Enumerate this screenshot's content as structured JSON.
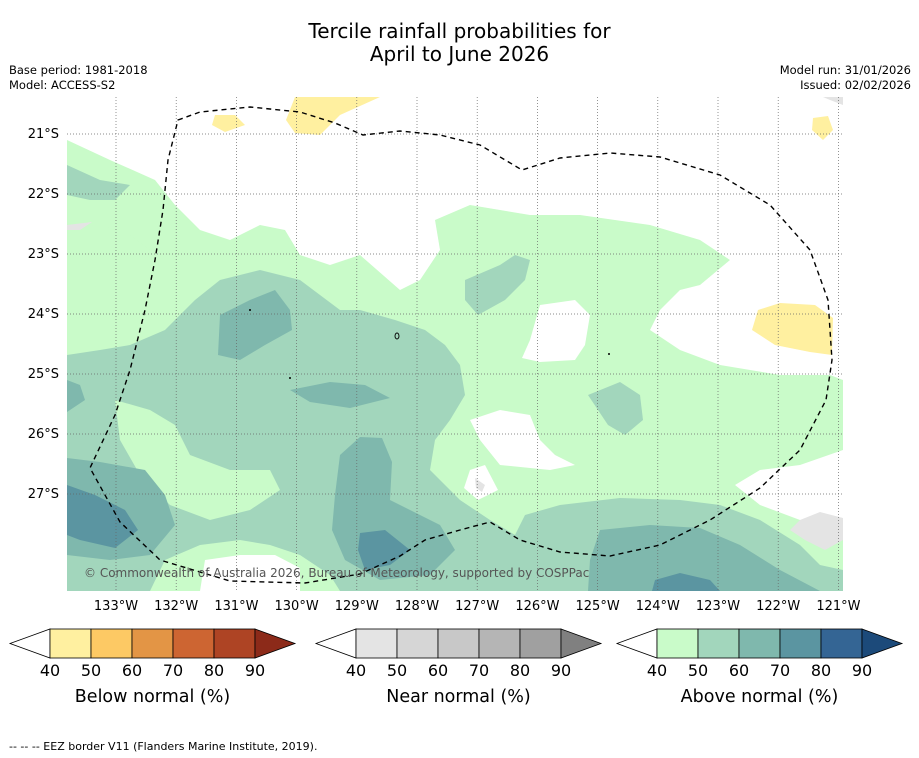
{
  "title_line1": "Tercile rainfall probabilities for",
  "title_line2": "April to June 2026",
  "meta_left": {
    "base_period": "Base period: 1981-2018",
    "model": "Model: ACCESS-S2"
  },
  "meta_right": {
    "model_run": "Model run: 31/01/2026",
    "issued": "Issued: 02/02/2026"
  },
  "map": {
    "lat_labels": [
      "21°S",
      "22°S",
      "23°S",
      "24°S",
      "25°S",
      "26°S",
      "27°S"
    ],
    "lon_labels": [
      "133°W",
      "132°W",
      "131°W",
      "130°W",
      "129°W",
      "128°W",
      "127°W",
      "126°W",
      "125°W",
      "124°W",
      "123°W",
      "122°W",
      "121°W"
    ],
    "watermark": "© Commonwealth of Australia 2026, Bureau of Meteorology, supported by COSPPac"
  },
  "colorbars": [
    {
      "title": "Below normal (%)",
      "ticks": [
        "40",
        "50",
        "60",
        "70",
        "80",
        "90"
      ],
      "colors": [
        "#ffffff",
        "#fff0a0",
        "#fdc964",
        "#e39545",
        "#cd6532",
        "#ae4424",
        "#8c2a19"
      ]
    },
    {
      "title": "Near normal (%)",
      "ticks": [
        "40",
        "50",
        "60",
        "70",
        "80",
        "90"
      ],
      "colors": [
        "#ffffff",
        "#e4e4e4",
        "#d6d6d6",
        "#c8c8c8",
        "#b5b5b5",
        "#a0a0a0",
        "#808080"
      ]
    },
    {
      "title": "Above normal (%)",
      "ticks": [
        "40",
        "50",
        "60",
        "70",
        "80",
        "90"
      ],
      "colors": [
        "#ffffff",
        "#c9fbc9",
        "#a2d6bc",
        "#7fb8ad",
        "#5b95a1",
        "#346594",
        "#1c4a7a"
      ]
    }
  ],
  "footer": "--  --  -- EEZ border V11 (Flanders Marine Institute, 2019)."
}
